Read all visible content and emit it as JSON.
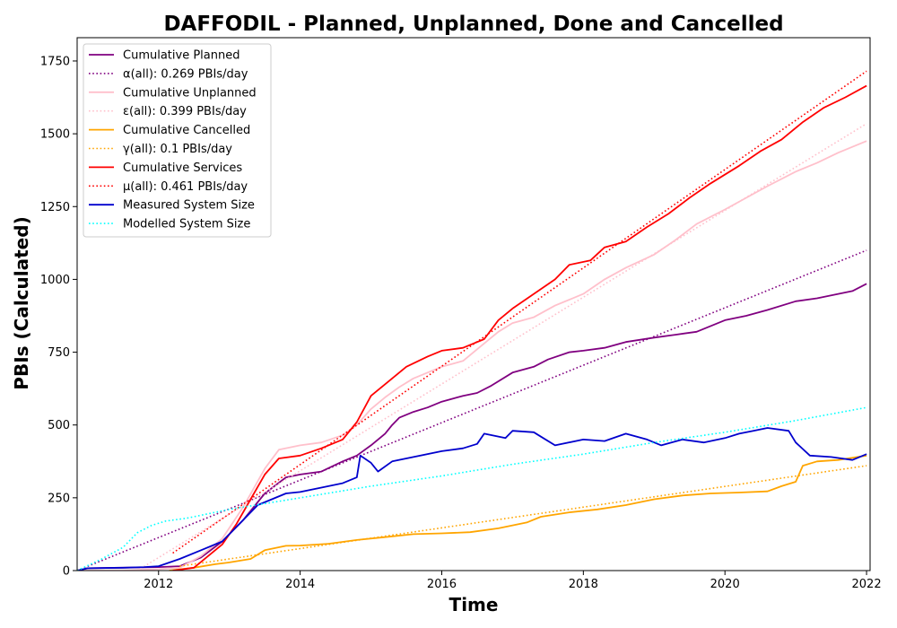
{
  "chart_data": {
    "type": "line",
    "title": "DAFFODIL - Planned, Unplanned, Done  and Cancelled",
    "xlabel": "Time",
    "ylabel": "PBIs (Calculated)",
    "xlim": [
      2010.85,
      2022.05
    ],
    "ylim": [
      0,
      1830
    ],
    "x_ticks": [
      2012,
      2014,
      2016,
      2018,
      2020,
      2022
    ],
    "y_ticks": [
      0,
      250,
      500,
      750,
      1000,
      1250,
      1500,
      1750
    ],
    "legend_position": "top-left",
    "grid": false,
    "series": [
      {
        "name": "Cumulative Planned",
        "color": "#800080",
        "style": "solid",
        "points": [
          [
            2010.85,
            0
          ],
          [
            2011.0,
            8
          ],
          [
            2011.5,
            10
          ],
          [
            2012.0,
            12
          ],
          [
            2012.3,
            15
          ],
          [
            2012.6,
            45
          ],
          [
            2012.9,
            100
          ],
          [
            2013.2,
            175
          ],
          [
            2013.5,
            265
          ],
          [
            2013.8,
            320
          ],
          [
            2014.0,
            330
          ],
          [
            2014.3,
            340
          ],
          [
            2014.6,
            375
          ],
          [
            2014.8,
            395
          ],
          [
            2015.0,
            430
          ],
          [
            2015.2,
            470
          ],
          [
            2015.3,
            500
          ],
          [
            2015.4,
            525
          ],
          [
            2015.6,
            545
          ],
          [
            2015.8,
            560
          ],
          [
            2016.0,
            580
          ],
          [
            2016.3,
            600
          ],
          [
            2016.5,
            610
          ],
          [
            2016.7,
            635
          ],
          [
            2017.0,
            680
          ],
          [
            2017.3,
            700
          ],
          [
            2017.5,
            725
          ],
          [
            2017.8,
            750
          ],
          [
            2018.0,
            755
          ],
          [
            2018.3,
            765
          ],
          [
            2018.6,
            785
          ],
          [
            2019.0,
            800
          ],
          [
            2019.3,
            810
          ],
          [
            2019.6,
            820
          ],
          [
            2020.0,
            860
          ],
          [
            2020.3,
            875
          ],
          [
            2020.6,
            895
          ],
          [
            2021.0,
            925
          ],
          [
            2021.3,
            935
          ],
          [
            2021.6,
            950
          ],
          [
            2021.8,
            960
          ],
          [
            2022.0,
            985
          ]
        ]
      },
      {
        "name": "α(all): 0.269 PBIs/day",
        "color": "#800080",
        "style": "dotted",
        "points": [
          [
            2010.85,
            0
          ],
          [
            2022.0,
            1100
          ]
        ]
      },
      {
        "name": "Cumulative Unplanned",
        "color": "#ffc0cb",
        "style": "solid",
        "points": [
          [
            2010.85,
            0
          ],
          [
            2011.5,
            0
          ],
          [
            2012.0,
            5
          ],
          [
            2012.3,
            10
          ],
          [
            2012.6,
            50
          ],
          [
            2012.9,
            110
          ],
          [
            2013.2,
            220
          ],
          [
            2013.5,
            350
          ],
          [
            2013.7,
            415
          ],
          [
            2014.0,
            430
          ],
          [
            2014.3,
            440
          ],
          [
            2014.6,
            465
          ],
          [
            2014.8,
            500
          ],
          [
            2015.0,
            555
          ],
          [
            2015.2,
            595
          ],
          [
            2015.4,
            630
          ],
          [
            2015.6,
            660
          ],
          [
            2016.0,
            700
          ],
          [
            2016.3,
            720
          ],
          [
            2016.5,
            760
          ],
          [
            2016.8,
            820
          ],
          [
            2017.0,
            850
          ],
          [
            2017.3,
            870
          ],
          [
            2017.6,
            910
          ],
          [
            2018.0,
            950
          ],
          [
            2018.3,
            1000
          ],
          [
            2018.6,
            1040
          ],
          [
            2019.0,
            1085
          ],
          [
            2019.3,
            1135
          ],
          [
            2019.6,
            1190
          ],
          [
            2020.0,
            1240
          ],
          [
            2020.3,
            1280
          ],
          [
            2020.6,
            1320
          ],
          [
            2021.0,
            1370
          ],
          [
            2021.3,
            1400
          ],
          [
            2021.6,
            1435
          ],
          [
            2022.0,
            1475
          ]
        ]
      },
      {
        "name": "ε(all): 0.399 PBIs/day",
        "color": "#ffc0cb",
        "style": "dotted",
        "points": [
          [
            2011.7,
            0
          ],
          [
            2022.0,
            1535
          ]
        ]
      },
      {
        "name": "Cumulative Cancelled",
        "color": "#ffa500",
        "style": "solid",
        "points": [
          [
            2012.15,
            0
          ],
          [
            2012.5,
            10
          ],
          [
            2012.8,
            22
          ],
          [
            2013.0,
            28
          ],
          [
            2013.3,
            40
          ],
          [
            2013.5,
            70
          ],
          [
            2013.8,
            85
          ],
          [
            2014.0,
            86
          ],
          [
            2014.4,
            92
          ],
          [
            2014.8,
            105
          ],
          [
            2015.2,
            115
          ],
          [
            2015.6,
            125
          ],
          [
            2016.0,
            128
          ],
          [
            2016.4,
            132
          ],
          [
            2016.8,
            145
          ],
          [
            2017.2,
            165
          ],
          [
            2017.4,
            185
          ],
          [
            2017.8,
            200
          ],
          [
            2018.2,
            210
          ],
          [
            2018.6,
            225
          ],
          [
            2019.0,
            245
          ],
          [
            2019.4,
            258
          ],
          [
            2019.8,
            265
          ],
          [
            2020.2,
            268
          ],
          [
            2020.6,
            272
          ],
          [
            2020.8,
            290
          ],
          [
            2021.0,
            305
          ],
          [
            2021.1,
            360
          ],
          [
            2021.3,
            375
          ],
          [
            2021.6,
            380
          ],
          [
            2022.0,
            395
          ]
        ]
      },
      {
        "name": "γ(all): 0.1 PBIs/day",
        "color": "#ffa500",
        "style": "dotted",
        "points": [
          [
            2012.3,
            15
          ],
          [
            2022.0,
            360
          ]
        ]
      },
      {
        "name": "Cumulative Services",
        "color": "#ff0000",
        "style": "solid",
        "points": [
          [
            2012.2,
            0
          ],
          [
            2012.5,
            10
          ],
          [
            2012.7,
            50
          ],
          [
            2012.9,
            90
          ],
          [
            2013.1,
            160
          ],
          [
            2013.3,
            245
          ],
          [
            2013.5,
            330
          ],
          [
            2013.7,
            385
          ],
          [
            2014.0,
            395
          ],
          [
            2014.3,
            420
          ],
          [
            2014.6,
            450
          ],
          [
            2014.8,
            510
          ],
          [
            2015.0,
            600
          ],
          [
            2015.3,
            660
          ],
          [
            2015.5,
            700
          ],
          [
            2015.8,
            735
          ],
          [
            2016.0,
            755
          ],
          [
            2016.3,
            765
          ],
          [
            2016.6,
            795
          ],
          [
            2016.8,
            860
          ],
          [
            2017.0,
            900
          ],
          [
            2017.3,
            950
          ],
          [
            2017.6,
            1000
          ],
          [
            2017.8,
            1050
          ],
          [
            2018.1,
            1065
          ],
          [
            2018.3,
            1110
          ],
          [
            2018.6,
            1130
          ],
          [
            2018.9,
            1180
          ],
          [
            2019.2,
            1225
          ],
          [
            2019.5,
            1280
          ],
          [
            2019.8,
            1330
          ],
          [
            2020.2,
            1390
          ],
          [
            2020.5,
            1440
          ],
          [
            2020.8,
            1480
          ],
          [
            2021.1,
            1540
          ],
          [
            2021.4,
            1590
          ],
          [
            2021.7,
            1625
          ],
          [
            2022.0,
            1665
          ]
        ]
      },
      {
        "name": "μ(all): 0.461 PBIs/day",
        "color": "#ff0000",
        "style": "dotted",
        "points": [
          [
            2012.2,
            60
          ],
          [
            2022.0,
            1715
          ]
        ]
      },
      {
        "name": "Measured System Size",
        "color": "#0000cd",
        "style": "solid",
        "points": [
          [
            2010.85,
            0
          ],
          [
            2011.0,
            8
          ],
          [
            2011.5,
            10
          ],
          [
            2011.8,
            12
          ],
          [
            2012.0,
            15
          ],
          [
            2012.3,
            40
          ],
          [
            2012.6,
            70
          ],
          [
            2012.9,
            100
          ],
          [
            2013.2,
            175
          ],
          [
            2013.4,
            225
          ],
          [
            2013.6,
            245
          ],
          [
            2013.8,
            265
          ],
          [
            2014.0,
            270
          ],
          [
            2014.3,
            285
          ],
          [
            2014.6,
            300
          ],
          [
            2014.8,
            320
          ],
          [
            2014.85,
            395
          ],
          [
            2015.0,
            370
          ],
          [
            2015.1,
            340
          ],
          [
            2015.3,
            375
          ],
          [
            2015.6,
            390
          ],
          [
            2016.0,
            410
          ],
          [
            2016.3,
            420
          ],
          [
            2016.5,
            435
          ],
          [
            2016.6,
            470
          ],
          [
            2016.9,
            455
          ],
          [
            2017.0,
            480
          ],
          [
            2017.3,
            475
          ],
          [
            2017.4,
            460
          ],
          [
            2017.6,
            430
          ],
          [
            2018.0,
            450
          ],
          [
            2018.3,
            445
          ],
          [
            2018.6,
            470
          ],
          [
            2018.9,
            450
          ],
          [
            2019.1,
            430
          ],
          [
            2019.4,
            450
          ],
          [
            2019.7,
            440
          ],
          [
            2020.0,
            455
          ],
          [
            2020.2,
            470
          ],
          [
            2020.4,
            480
          ],
          [
            2020.6,
            490
          ],
          [
            2020.9,
            480
          ],
          [
            2021.0,
            440
          ],
          [
            2021.2,
            395
          ],
          [
            2021.5,
            390
          ],
          [
            2021.8,
            380
          ],
          [
            2022.0,
            400
          ]
        ]
      },
      {
        "name": "Modelled System Size",
        "color": "#00ffff",
        "style": "dotted",
        "points": [
          [
            2010.85,
            0
          ],
          [
            2011.2,
            40
          ],
          [
            2011.5,
            80
          ],
          [
            2011.7,
            130
          ],
          [
            2011.9,
            155
          ],
          [
            2012.1,
            170
          ],
          [
            2012.4,
            180
          ],
          [
            2012.7,
            195
          ],
          [
            2013.0,
            210
          ],
          [
            2014.0,
            250
          ],
          [
            2015.0,
            290
          ],
          [
            2016.0,
            325
          ],
          [
            2017.0,
            365
          ],
          [
            2018.0,
            400
          ],
          [
            2019.0,
            440
          ],
          [
            2020.0,
            475
          ],
          [
            2021.0,
            515
          ],
          [
            2022.0,
            560
          ]
        ]
      }
    ]
  }
}
